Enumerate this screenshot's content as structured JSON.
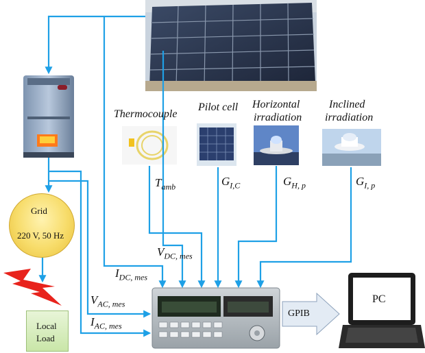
{
  "labels": {
    "thermocouple": "Thermocouple",
    "pilot_cell": "Pilot cell",
    "horizontal_l1": "Horizontal",
    "horizontal_l2": "irradiation",
    "inclined_l1": "Inclined",
    "inclined_l2": "irradiation",
    "grid": "Grid",
    "grid_spec": "220 V, 50 Hz",
    "local_load_l1": "Local",
    "local_load_l2": "Load",
    "gpib": "GPIB",
    "pc": "PC"
  },
  "symbols": {
    "t_amb": {
      "main": "T",
      "sub": "amb"
    },
    "g_ic": {
      "main": "G",
      "sub": "I,C"
    },
    "g_hp": {
      "main": "G",
      "sub": "H, p"
    },
    "g_ip": {
      "main": "G",
      "sub": "I, p"
    },
    "v_dc": {
      "main": "V",
      "sub": "DC, mes"
    },
    "i_dc": {
      "main": "I",
      "sub": "DC, mes"
    },
    "v_ac": {
      "main": "V",
      "sub": "AC, mes"
    },
    "i_ac": {
      "main": "I",
      "sub": "AC, mes"
    }
  },
  "colors": {
    "wire": "#1ea0e6",
    "gpib_arrow": "#dfe8f2",
    "lightning": "#e8231c",
    "grid_fill": "#f7dc6a",
    "load_fill": "#d6ecbd"
  }
}
